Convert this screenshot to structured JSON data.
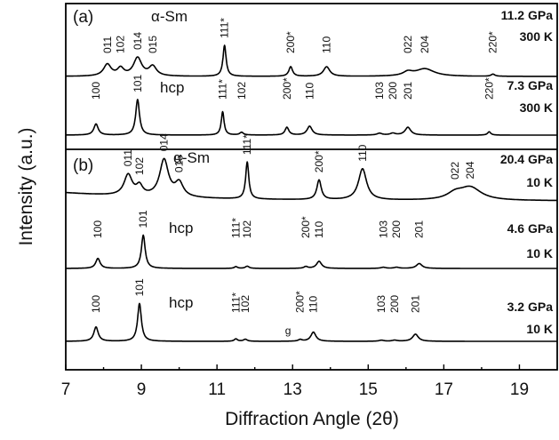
{
  "chart_data": {
    "type": "line",
    "xlabel": "Diffraction Angle (2θ)",
    "ylabel": "Intensity (a.u.)",
    "xlim": [
      7,
      20
    ],
    "x_ticks": [
      "7",
      "9",
      "11",
      "13",
      "15",
      "17",
      "19"
    ],
    "grid": false,
    "panels": [
      {
        "label": "(a)",
        "series": [
          {
            "phase": "α-Sm",
            "pressure": "11.2 GPa",
            "temperature": "300 K",
            "baseline": 1.0,
            "peaks": [
              {
                "label": "011",
                "x": 8.1,
                "height": 0.55,
                "width": 0.12
              },
              {
                "label": "102",
                "x": 8.45,
                "height": 0.35,
                "width": 0.1
              },
              {
                "label": "014",
                "x": 8.9,
                "height": 0.85,
                "width": 0.13
              },
              {
                "label": "015",
                "x": 9.3,
                "height": 0.45,
                "width": 0.12
              },
              {
                "label": "111*",
                "x": 11.2,
                "height": 1.45,
                "width": 0.05
              },
              {
                "label": "200*",
                "x": 12.95,
                "height": 0.45,
                "width": 0.06
              },
              {
                "label": "110",
                "x": 13.9,
                "height": 0.45,
                "width": 0.1
              },
              {
                "label": "022",
                "x": 16.05,
                "height": 0.18,
                "width": 0.15
              },
              {
                "label": "204",
                "x": 16.5,
                "height": 0.35,
                "width": 0.3
              },
              {
                "label": "220*",
                "x": 18.3,
                "height": 0.1,
                "width": 0.06
              }
            ]
          },
          {
            "phase": "hcp",
            "pressure": "7.3 GPa",
            "temperature": "300 K",
            "baseline": 0.0,
            "peaks": [
              {
                "label": "100",
                "x": 7.8,
                "height": 0.5,
                "width": 0.07
              },
              {
                "label": "101",
                "x": 8.9,
                "height": 1.6,
                "width": 0.06
              },
              {
                "label": "111*",
                "x": 11.15,
                "height": 1.05,
                "width": 0.045
              },
              {
                "label": "102",
                "x": 11.65,
                "height": 0.12,
                "width": 0.06
              },
              {
                "label": "200*",
                "x": 12.85,
                "height": 0.35,
                "width": 0.06
              },
              {
                "label": "110",
                "x": 13.45,
                "height": 0.4,
                "width": 0.08
              },
              {
                "label": "103",
                "x": 15.3,
                "height": 0.08,
                "width": 0.08
              },
              {
                "label": "200",
                "x": 15.65,
                "height": 0.08,
                "width": 0.08
              },
              {
                "label": "201",
                "x": 16.05,
                "height": 0.35,
                "width": 0.09
              },
              {
                "label": "220*",
                "x": 18.2,
                "height": 0.15,
                "width": 0.05
              }
            ]
          }
        ]
      },
      {
        "label": "(b)",
        "series": [
          {
            "phase": "α-Sm",
            "pressure": "20.4 GPa",
            "temperature": "10 K",
            "baseline": 2.0,
            "peaks": [
              {
                "label": "011",
                "x": 8.65,
                "height": 0.9,
                "width": 0.13
              },
              {
                "label": "102",
                "x": 8.95,
                "height": 0.4,
                "width": 0.1
              },
              {
                "label": "014",
                "x": 9.6,
                "height": 1.6,
                "width": 0.14
              },
              {
                "label": "015",
                "x": 10.0,
                "height": 0.6,
                "width": 0.13
              },
              {
                "label": "111*",
                "x": 11.8,
                "height": 1.6,
                "width": 0.05
              },
              {
                "label": "200*",
                "x": 13.7,
                "height": 0.85,
                "width": 0.07
              },
              {
                "label": "110",
                "x": 14.85,
                "height": 1.35,
                "width": 0.13
              },
              {
                "label": "022",
                "x": 17.3,
                "height": 0.25,
                "width": 0.25
              },
              {
                "label": "204",
                "x": 17.7,
                "height": 0.55,
                "width": 0.35
              }
            ]
          },
          {
            "phase": "hcp",
            "pressure": "4.6 GPa",
            "temperature": "10 K",
            "baseline": 1.0,
            "peaks": [
              {
                "label": "100",
                "x": 7.85,
                "height": 0.45,
                "width": 0.07
              },
              {
                "label": "101",
                "x": 9.05,
                "height": 1.5,
                "width": 0.06
              },
              {
                "label": "111*",
                "x": 11.5,
                "height": 0.08,
                "width": 0.05
              },
              {
                "label": "102",
                "x": 11.8,
                "height": 0.1,
                "width": 0.06
              },
              {
                "label": "200*",
                "x": 13.35,
                "height": 0.08,
                "width": 0.06
              },
              {
                "label": "110",
                "x": 13.7,
                "height": 0.32,
                "width": 0.08
              },
              {
                "label": "103",
                "x": 15.4,
                "height": 0.05,
                "width": 0.08
              },
              {
                "label": "200",
                "x": 15.75,
                "height": 0.05,
                "width": 0.08
              },
              {
                "label": "201",
                "x": 16.35,
                "height": 0.22,
                "width": 0.09
              }
            ]
          },
          {
            "phase": "hcp",
            "pressure": "3.2 GPa",
            "temperature": "10 K",
            "baseline": 0.0,
            "marker": "g",
            "peaks": [
              {
                "label": "100",
                "x": 7.8,
                "height": 0.7,
                "width": 0.07
              },
              {
                "label": "101",
                "x": 8.95,
                "height": 1.85,
                "width": 0.06
              },
              {
                "label": "111*",
                "x": 11.5,
                "height": 0.12,
                "width": 0.05
              },
              {
                "label": "102",
                "x": 11.75,
                "height": 0.1,
                "width": 0.06
              },
              {
                "label": "200*",
                "x": 13.2,
                "height": 0.08,
                "width": 0.06
              },
              {
                "label": "110",
                "x": 13.55,
                "height": 0.45,
                "width": 0.08
              },
              {
                "label": "103",
                "x": 15.35,
                "height": 0.05,
                "width": 0.08
              },
              {
                "label": "200",
                "x": 15.7,
                "height": 0.05,
                "width": 0.08
              },
              {
                "label": "201",
                "x": 16.25,
                "height": 0.35,
                "width": 0.09
              }
            ]
          }
        ]
      }
    ]
  }
}
